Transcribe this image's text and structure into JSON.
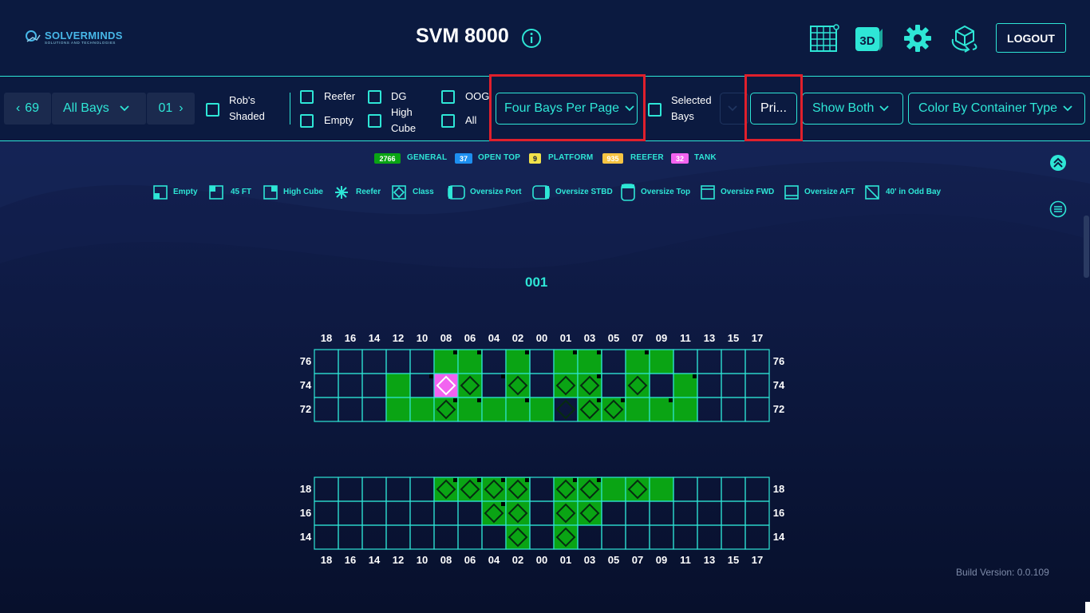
{
  "colors": {
    "accent": "#2ee6d6",
    "background": "#0a1436",
    "panel": "#0b1a40",
    "general": "#0aa414",
    "tank": "#f263f0",
    "highlight": "#e0202c"
  },
  "header": {
    "logo_name": "SOLVERMINDS",
    "logo_sub": "SOLUTIONS AND TECHNOLOGIES",
    "title": "SVM 8000",
    "logout_label": "LOGOUT",
    "icons": [
      "grid-view-icon",
      "3d-view-icon",
      "settings-gear-icon",
      "cube-rotate-icon"
    ],
    "three_d_label": "3D"
  },
  "toolbar": {
    "bay_prev_value": "69",
    "bay_filter": "All Bays",
    "bay_next_value": "01",
    "robs_shaded": "Rob's Shaded",
    "reefer": "Reefer",
    "empty": "Empty",
    "dg": "DG",
    "high_cube": "High Cube",
    "oog": "OOG",
    "all": "All",
    "page_layout": "Four Bays Per Page",
    "selected_bays": "Selected Bays",
    "print_label": "Pri...",
    "show_mode": "Show Both",
    "color_mode": "Color By Container Type"
  },
  "legend_types": [
    {
      "count": "2766",
      "label": "GENERAL",
      "color": "#0aa414"
    },
    {
      "count": "37",
      "label": "OPEN TOP",
      "color": "#1d8ff0"
    },
    {
      "count": "9",
      "label": "PLATFORM",
      "color": "#f2e24a"
    },
    {
      "count": "935",
      "label": "REEFER",
      "color": "#f6c443"
    },
    {
      "count": "32",
      "label": "TANK",
      "color": "#f263f0"
    }
  ],
  "legend_symbols": [
    {
      "label": "Empty",
      "icon": "empty-symbol-icon"
    },
    {
      "label": "45 FT",
      "icon": "45ft-symbol-icon"
    },
    {
      "label": "High Cube",
      "icon": "high-cube-symbol-icon"
    },
    {
      "label": "Reefer",
      "icon": "reefer-asterisk-icon"
    },
    {
      "label": "Class",
      "icon": "class-diamond-icon"
    },
    {
      "label": "Oversize Port",
      "icon": "oversize-port-icon"
    },
    {
      "label": "Oversize STBD",
      "icon": "oversize-stbd-icon"
    },
    {
      "label": "Oversize Top",
      "icon": "oversize-top-icon"
    },
    {
      "label": "Oversize FWD",
      "icon": "oversize-fwd-icon"
    },
    {
      "label": "Oversize AFT",
      "icon": "oversize-aft-icon"
    },
    {
      "label": "40' in Odd Bay",
      "icon": "40ft-odd-bay-icon"
    }
  ],
  "bay": {
    "title": "001",
    "columns": [
      "18",
      "16",
      "14",
      "12",
      "10",
      "08",
      "06",
      "04",
      "02",
      "00",
      "01",
      "03",
      "05",
      "07",
      "09",
      "11",
      "13",
      "15",
      "17"
    ],
    "deck": {
      "rows": [
        "76",
        "74",
        "72"
      ],
      "cells": [
        "_____gg_g_gg_gg____",
        "___g_tg_g_ggdgdg___",
        "___ggggggg_ggggg___"
      ],
      "diamonds": [
        "___________________",
        "_____dd_d_dd_d_____",
        "_____d____ddd______"
      ],
      "markers": [
        "_____xx_x_xx_x_____",
        "____x__x___x___x___",
        "_____xx_x__xx_x____"
      ]
    },
    "hold": {
      "rows": [
        "18",
        "16",
        "14"
      ],
      "cells": [
        "_____gggg_ggggg____",
        "_______gg_gg_______",
        "________g_g________"
      ],
      "diamonds": [
        "_____dddd_dd_d_____",
        "_______dd_dd_______",
        "________d_d________"
      ],
      "markers": [
        "_____xxxx_xx_______",
        "_______x___________",
        "___________________"
      ]
    }
  },
  "footer": {
    "build_version": "Build Version: 0.0.109"
  }
}
